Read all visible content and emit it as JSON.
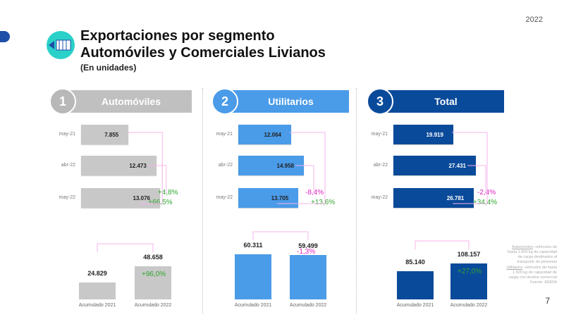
{
  "year": "2022",
  "title_line1": "Exportaciones por segmento",
  "title_line2": "Automóviles y Comerciales Livianos",
  "subtitle": "(En unidades)",
  "colors": {
    "autos": "#c8c8c8",
    "utilitarios": "#4a9be8",
    "total": "#0a4a9a",
    "increase": "#2fa52f",
    "decrease": "#e020c0",
    "connector": "#f6b4ea"
  },
  "panels": [
    {
      "number": "1",
      "title": "Automóviles",
      "rows": [
        {
          "label": "may-21",
          "value": "7.855",
          "n": 7855
        },
        {
          "label": "abr-22",
          "value": "12.473",
          "n": 12473
        },
        {
          "label": "may-22",
          "value": "13.076",
          "n": 13076
        }
      ],
      "var_month": "+4,8%",
      "var_year": "+66,5%",
      "acc": [
        {
          "label": "Acumulado 2021",
          "value": "24.829",
          "n": 24829
        },
        {
          "label": "Acumulado 2022",
          "value": "48.658",
          "n": 48658
        }
      ],
      "acc_var": "+96,0%"
    },
    {
      "number": "2",
      "title": "Utilitarios",
      "rows": [
        {
          "label": "may-21",
          "value": "12.064",
          "n": 12064
        },
        {
          "label": "abr-22",
          "value": "14.958",
          "n": 14958
        },
        {
          "label": "may-22",
          "value": "13.705",
          "n": 13705
        }
      ],
      "var_month": "-8,4%",
      "var_year": "+13,6%",
      "acc": [
        {
          "label": "Acumulado 2021",
          "value": "60.311",
          "n": 60311
        },
        {
          "label": "Acumulado 2022",
          "value": "59.499",
          "n": 59499
        }
      ],
      "acc_var": "-1,3%"
    },
    {
      "number": "3",
      "title": "Total",
      "rows": [
        {
          "label": "may-21",
          "value": "19.919",
          "n": 19919
        },
        {
          "label": "abr-22",
          "value": "27.431",
          "n": 27431
        },
        {
          "label": "may-22",
          "value": "26.781",
          "n": 26781
        }
      ],
      "var_month": "-2,4%",
      "var_year": "+34,4%",
      "acc": [
        {
          "label": "Acumulado 2021",
          "value": "85.140",
          "n": 85140
        },
        {
          "label": "Acumulado 2022",
          "value": "108.157",
          "n": 108157
        }
      ],
      "acc_var": "+27,0%"
    }
  ],
  "notes": {
    "autos_term": "Automóviles",
    "autos_def": ": vehículos de hasta 1.500 kg de capacidad de carga destinados al transporte de personas",
    "util_term": "Utilitarios",
    "util_def": ": vehículos de hasta 1.500 kg de capacidad de carga con destino comercial",
    "source": "Fuente: ADEFA"
  },
  "page_number": "7"
}
